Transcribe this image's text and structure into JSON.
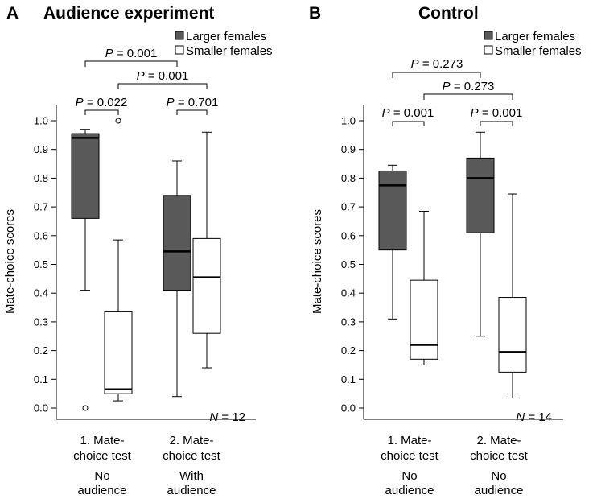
{
  "chart_data": [
    {
      "panel_letter": "A",
      "title": "Audience experiment",
      "type": "boxplot",
      "ylabel": "Mate-choice scores",
      "ylim": [
        0,
        1.0
      ],
      "yticks": [
        "0.0",
        "0.1",
        "0.2",
        "0.3",
        "0.4",
        "0.5",
        "0.6",
        "0.7",
        "0.8",
        "0.9",
        "1.0"
      ],
      "legend": [
        {
          "name": "Larger females",
          "color": "#595959"
        },
        {
          "name": "Smaller females",
          "color": "#ffffff"
        }
      ],
      "categories": [
        {
          "line1": "1. Mate-",
          "line2": "choice test",
          "line3": "No",
          "line4": "audience"
        },
        {
          "line1": "2. Mate-",
          "line2": "choice test",
          "line3": "With",
          "line4": "audience"
        }
      ],
      "series": [
        {
          "name": "Larger females",
          "boxes": [
            {
              "min": 0.41,
              "q1": 0.66,
              "median": 0.94,
              "q3": 0.955,
              "max": 0.97,
              "outliers": [
                0.0
              ]
            },
            {
              "min": 0.04,
              "q1": 0.41,
              "median": 0.545,
              "q3": 0.74,
              "max": 0.86,
              "outliers": []
            }
          ]
        },
        {
          "name": "Smaller females",
          "boxes": [
            {
              "min": 0.025,
              "q1": 0.05,
              "median": 0.065,
              "q3": 0.335,
              "max": 0.585,
              "outliers": [
                1.0
              ]
            },
            {
              "min": 0.14,
              "q1": 0.26,
              "median": 0.455,
              "q3": 0.59,
              "max": 0.96,
              "outliers": []
            }
          ]
        }
      ],
      "comparisons": [
        {
          "P": "P",
          "eq": " = 0.001",
          "between": [
            [
              0,
              0
            ],
            [
              1,
              0
            ]
          ]
        },
        {
          "P": "P",
          "eq": " = 0.001",
          "between": [
            [
              0,
              1
            ],
            [
              1,
              1
            ]
          ]
        },
        {
          "P": "P",
          "eq": " = 0.022",
          "between": [
            [
              0,
              0
            ],
            [
              0,
              1
            ]
          ]
        },
        {
          "P": "P",
          "eq": " = 0.701",
          "between": [
            [
              1,
              0
            ],
            [
              1,
              1
            ]
          ]
        }
      ],
      "n_label": {
        "N": "N",
        "eq": " = 12"
      }
    },
    {
      "panel_letter": "B",
      "title": "Control",
      "type": "boxplot",
      "ylabel": "Mate-choice scores",
      "ylim": [
        0,
        1.0
      ],
      "yticks": [
        "0.0",
        "0.1",
        "0.2",
        "0.3",
        "0.4",
        "0.5",
        "0.6",
        "0.7",
        "0.8",
        "0.9",
        "1.0"
      ],
      "legend": [
        {
          "name": "Larger females",
          "color": "#595959"
        },
        {
          "name": "Smaller females",
          "color": "#ffffff"
        }
      ],
      "categories": [
        {
          "line1": "1. Mate-",
          "line2": "choice test",
          "line3": "No",
          "line4": "audience"
        },
        {
          "line1": "2. Mate-",
          "line2": "choice test",
          "line3": "No",
          "line4": "audience"
        }
      ],
      "series": [
        {
          "name": "Larger females",
          "boxes": [
            {
              "min": 0.31,
              "q1": 0.55,
              "median": 0.775,
              "q3": 0.825,
              "max": 0.845,
              "outliers": []
            },
            {
              "min": 0.25,
              "q1": 0.61,
              "median": 0.8,
              "q3": 0.87,
              "max": 0.96,
              "outliers": []
            }
          ]
        },
        {
          "name": "Smaller females",
          "boxes": [
            {
              "min": 0.15,
              "q1": 0.17,
              "median": 0.22,
              "q3": 0.445,
              "max": 0.685,
              "outliers": []
            },
            {
              "min": 0.035,
              "q1": 0.125,
              "median": 0.195,
              "q3": 0.385,
              "max": 0.745,
              "outliers": []
            }
          ]
        }
      ],
      "comparisons": [
        {
          "P": "P",
          "eq": " = 0.273",
          "between": [
            [
              0,
              0
            ],
            [
              1,
              0
            ]
          ]
        },
        {
          "P": "P",
          "eq": " = 0.273",
          "between": [
            [
              0,
              1
            ],
            [
              1,
              1
            ]
          ]
        },
        {
          "P": "P",
          "eq": " = 0.001",
          "between": [
            [
              0,
              0
            ],
            [
              0,
              1
            ]
          ]
        },
        {
          "P": "P",
          "eq": " = 0.001",
          "between": [
            [
              1,
              0
            ],
            [
              1,
              1
            ]
          ]
        }
      ],
      "n_label": {
        "N": "N",
        "eq": " = 14"
      }
    }
  ]
}
